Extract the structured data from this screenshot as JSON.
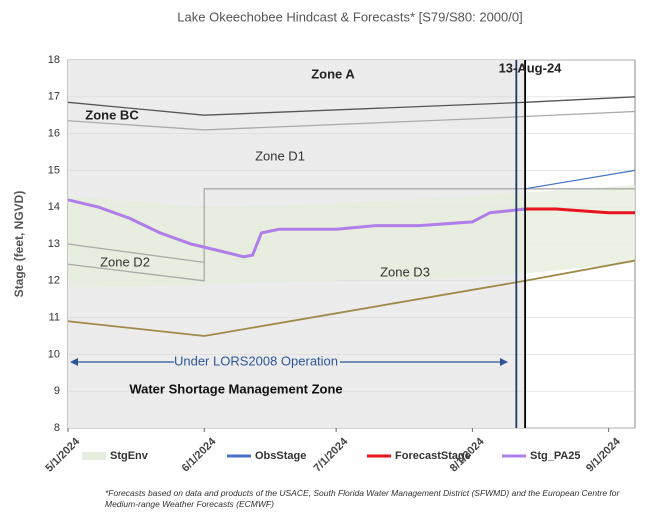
{
  "chart_data": {
    "type": "line",
    "title": "Lake Okeechobee Hindcast & Forecasts* [S79/S80: 2000/0]",
    "y_label": "Stage (feet, NGVD)",
    "ylim": [
      8,
      18
    ],
    "yticks": [
      8,
      9,
      10,
      11,
      12,
      13,
      14,
      15,
      16,
      17,
      18
    ],
    "xlim": [
      "2024-05-01",
      "2024-09-07"
    ],
    "xticks": [
      {
        "value": "2024-05-01",
        "label": "5/1/2024"
      },
      {
        "value": "2024-06-01",
        "label": "6/1/2024"
      },
      {
        "value": "2024-07-01",
        "label": "7/1/2024"
      },
      {
        "value": "2024-08-01",
        "label": "8/1/2024"
      },
      {
        "value": "2024-09-01",
        "label": "9/1/2024"
      }
    ],
    "vlines": [
      {
        "x": "2024-08-11",
        "color": "#1f3864"
      },
      {
        "x": "2024-08-13",
        "color": "#000000"
      }
    ],
    "zone_lines": [
      {
        "x": [
          "2024-05-01",
          "2024-06-01",
          "2024-08-13",
          "2024-09-07"
        ],
        "values": [
          16.85,
          16.5,
          16.85,
          17.0
        ],
        "color": "#555555"
      },
      {
        "x": [
          "2024-05-01",
          "2024-06-01",
          "2024-08-01",
          "2024-09-07"
        ],
        "values": [
          16.35,
          16.1,
          16.4,
          16.6
        ],
        "color": "#aaaaaa"
      },
      {
        "x": [
          "2024-06-01",
          "2024-06-01",
          "2024-09-07"
        ],
        "values": [
          12.0,
          14.5,
          14.5
        ],
        "color": "#aaaaaa"
      },
      {
        "x": [
          "2024-05-01",
          "2024-06-01"
        ],
        "values": [
          13.0,
          12.5
        ],
        "color": "#aaaaaa"
      },
      {
        "x": [
          "2024-05-01",
          "2024-06-01"
        ],
        "values": [
          12.45,
          12.0
        ],
        "color": "#aaaaaa"
      },
      {
        "x": [
          "2024-05-01",
          "2024-06-01",
          "2024-08-13",
          "2024-09-07"
        ],
        "values": [
          10.9,
          10.5,
          12.0,
          12.55
        ],
        "color": "#a08a4a"
      }
    ],
    "series": [
      {
        "name": "StgEnv",
        "color": "#e6eddc",
        "x": [
          "2024-05-01",
          "2024-06-01",
          "2024-07-01",
          "2024-08-01",
          "2024-08-13",
          "2024-09-07"
        ],
        "values": [
          14.3,
          14.0,
          14.1,
          14.3,
          14.4,
          14.6
        ],
        "lower": [
          11.8,
          11.9,
          12.0,
          12.1,
          12.2,
          12.5
        ]
      },
      {
        "name": "ObsStage",
        "color": "#4472c4",
        "x": [
          "2024-08-13",
          "2024-09-07"
        ],
        "values": [
          14.5,
          15.0
        ]
      },
      {
        "name": "ForecastStage",
        "color": "#e8141e",
        "x": [
          "2024-08-13",
          "2024-08-20",
          "2024-09-01",
          "2024-09-07"
        ],
        "values": [
          13.95,
          13.95,
          13.85,
          13.85
        ]
      },
      {
        "name": "Stg_PA25",
        "color": "#b07ee8",
        "x": [
          "2024-05-01",
          "2024-05-08",
          "2024-05-15",
          "2024-05-22",
          "2024-05-29",
          "2024-06-05",
          "2024-06-10",
          "2024-06-12",
          "2024-06-14",
          "2024-06-18",
          "2024-07-01",
          "2024-07-10",
          "2024-07-20",
          "2024-08-01",
          "2024-08-05",
          "2024-08-13"
        ],
        "values": [
          14.2,
          14.0,
          13.7,
          13.3,
          13.0,
          12.8,
          12.65,
          12.7,
          13.3,
          13.4,
          13.4,
          13.5,
          13.5,
          13.6,
          13.85,
          13.95
        ]
      }
    ],
    "annotations": [
      "Zone A",
      "Zone BC",
      "Zone D1",
      "Zone D2",
      "Zone D3",
      "13-Aug-24",
      "Under LORS2008 Operation",
      "Water Shortage Management Zone"
    ],
    "footnote": "*Forecasts based on data and products of the USACE, South Florida Water Management District (SFWMD) and the European Centre for Medium-range Weather Forecasts (ECMWF)"
  }
}
